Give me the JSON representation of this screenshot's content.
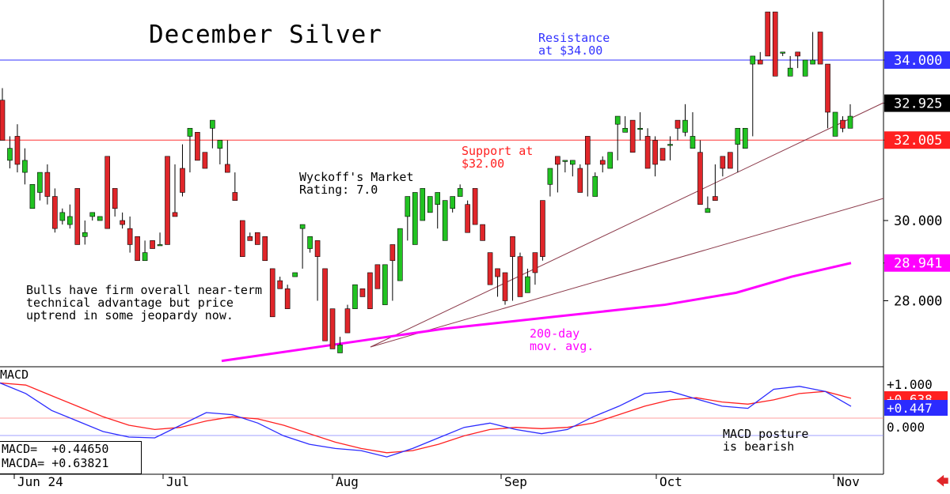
{
  "title": "December Silver",
  "annotations": {
    "resistance": "Resistance\nat $34.00",
    "support": "Support at\n$32.00",
    "rating": "Wyckoff's Market\nRating: 7.0",
    "bulls": "Bulls have firm overall near-term\ntechnical advantage but price\nuptrend in some jeopardy now.",
    "ma200": "200-day\nmov. avg.",
    "macd_posture": "MACD posture\nis bearish",
    "macd_label": "MACD"
  },
  "macd_box": {
    "macd": "MACD=  +0.44650",
    "macda": "MACDA= +0.63821"
  },
  "colors": {
    "up": "#22c322",
    "down": "#e0262a",
    "ma": "#ff00ff",
    "resistance": "#3333ff",
    "support": "#ff3333",
    "trend": "#8b3a4a",
    "macd": "#2b2bff",
    "macda": "#ff2020"
  },
  "chart_data": [
    {
      "type": "candlestick",
      "title": "December Silver",
      "x": [
        "Jun 24",
        "Jul",
        "Aug",
        "Sep",
        "Oct",
        "Nov"
      ],
      "y_ticks": [
        "34.000",
        "32.925",
        "32.005",
        "30.000",
        "28.941",
        "28.000"
      ],
      "ylim": [
        26.6,
        35.2
      ],
      "levels": {
        "resistance": 34.0,
        "support": 32.005,
        "last": 32.925,
        "ma200_last": 28.941
      },
      "candles": [
        [
          33.0,
          33.3,
          32.6,
          32.0
        ],
        [
          31.5,
          32.1,
          31.3,
          31.8
        ],
        [
          32.1,
          32.4,
          31.2,
          31.4
        ],
        [
          31.2,
          31.8,
          30.9,
          31.5
        ],
        [
          30.3,
          30.8,
          30.3,
          30.9
        ],
        [
          30.7,
          31.1,
          30.5,
          31.2
        ],
        [
          31.2,
          31.4,
          30.4,
          30.6
        ],
        [
          30.6,
          30.8,
          29.7,
          29.8
        ],
        [
          30.0,
          30.3,
          29.9,
          30.2
        ],
        [
          29.9,
          30.4,
          29.8,
          30.1
        ],
        [
          30.8,
          30.4,
          29.6,
          29.4
        ],
        [
          29.6,
          30.0,
          29.4,
          29.7
        ],
        [
          30.1,
          30.0,
          30.0,
          30.2
        ],
        [
          30.0,
          30.1,
          30.0,
          30.1
        ],
        [
          31.6,
          31.3,
          30.0,
          29.8
        ],
        [
          30.8,
          30.1,
          30.2,
          30.3
        ],
        [
          30.0,
          30.2,
          29.8,
          29.9
        ],
        [
          29.8,
          30.1,
          29.2,
          29.4
        ],
        [
          29.6,
          29.3,
          29.2,
          29.0
        ],
        [
          29.0,
          29.5,
          29.3,
          29.2
        ],
        [
          29.5,
          29.4,
          29.3,
          29.3
        ],
        [
          29.4,
          29.5,
          29.7,
          29.4
        ],
        [
          31.6,
          29.8,
          29.5,
          29.4
        ],
        [
          30.2,
          31.4,
          30.6,
          30.1
        ],
        [
          31.3,
          31.9,
          30.6,
          30.7
        ],
        [
          32.1,
          31.2,
          31.6,
          32.3
        ],
        [
          32.2,
          31.9,
          31.7,
          31.5
        ],
        [
          31.7,
          31.4,
          31.3,
          31.3
        ],
        [
          32.3,
          32.1,
          31.8,
          32.5
        ],
        [
          31.8,
          31.6,
          31.4,
          32.0
        ],
        [
          31.4,
          32.0,
          31.5,
          31.2
        ],
        [
          30.7,
          31.2,
          30.7,
          30.5
        ],
        [
          30.0,
          30.0,
          29.5,
          29.1
        ],
        [
          29.6,
          29.7,
          29.6,
          29.5
        ],
        [
          29.7,
          29.6,
          29.5,
          29.4
        ],
        [
          29.6,
          29.6,
          29.4,
          29.0
        ],
        [
          28.8,
          28.3,
          28.5,
          27.6
        ],
        [
          28.5,
          28.3,
          28.6,
          28.3
        ],
        [
          28.3,
          28.4,
          28.2,
          27.8
        ],
        [
          28.6,
          28.6,
          28.6,
          28.7
        ],
        [
          29.8,
          28.8,
          29.4,
          29.9
        ],
        [
          29.3,
          29.4,
          29.2,
          29.6
        ],
        [
          29.5,
          29.1,
          28.0,
          29.1
        ],
        [
          28.8,
          27.8,
          27.7,
          27.0
        ],
        [
          27.8,
          27.6,
          27.0,
          26.8
        ],
        [
          26.7,
          27.0,
          27.1,
          26.9
        ],
        [
          27.8,
          27.9,
          27.9,
          27.2
        ],
        [
          27.8,
          28.0,
          28.0,
          28.4
        ],
        [
          28.3,
          28.2,
          28.1,
          28.1
        ],
        [
          28.7,
          28.1,
          28.4,
          27.8
        ],
        [
          28.9,
          28.4,
          28.7,
          28.3
        ],
        [
          27.9,
          28.3,
          28.5,
          28.9
        ],
        [
          29.4,
          28.0,
          28.5,
          29.0
        ],
        [
          28.5,
          28.8,
          29.6,
          29.8
        ],
        [
          30.1,
          29.5,
          30.0,
          30.6
        ],
        [
          29.4,
          29.5,
          30.2,
          30.7
        ],
        [
          30.0,
          30.2,
          30.3,
          30.8
        ],
        [
          30.2,
          30.2,
          30.4,
          30.6
        ],
        [
          30.4,
          30.3,
          29.8,
          30.7
        ],
        [
          29.5,
          29.8,
          30.3,
          30.5
        ],
        [
          30.3,
          30.2,
          30.4,
          30.6
        ],
        [
          30.6,
          30.7,
          30.9,
          30.8
        ],
        [
          30.4,
          30.5,
          29.8,
          29.7
        ],
        [
          30.8,
          30.7,
          29.9,
          29.9
        ],
        [
          29.9,
          29.7,
          29.6,
          29.5
        ],
        [
          29.2,
          28.9,
          29.1,
          28.4
        ],
        [
          28.8,
          28.1,
          28.5,
          28.6
        ],
        [
          28.7,
          27.9,
          28.6,
          28.0
        ],
        [
          29.6,
          28.0,
          29.0,
          29.1
        ],
        [
          29.1,
          29.0,
          29.2,
          28.1
        ],
        [
          28.2,
          28.5,
          28.8,
          28.6
        ],
        [
          29.2,
          28.4,
          28.5,
          28.7
        ],
        [
          30.5,
          29.3,
          29.0,
          29.1
        ],
        [
          30.9,
          30.6,
          30.9,
          31.3
        ],
        [
          31.6,
          30.7,
          31.2,
          31.4
        ],
        [
          31.5,
          31.2,
          31.3,
          31.5
        ],
        [
          31.4,
          31.1,
          31.3,
          31.5
        ],
        [
          31.3,
          31.0,
          31.4,
          30.7
        ],
        [
          32.1,
          30.7,
          30.6,
          31.4
        ],
        [
          30.6,
          31.2,
          30.8,
          31.1
        ],
        [
          31.5,
          31.6,
          31.2,
          31.4
        ],
        [
          31.3,
          31.5,
          31.6,
          31.7
        ],
        [
          32.4,
          31.5,
          32.3,
          32.6
        ],
        [
          32.2,
          32.6,
          32.2,
          32.3
        ],
        [
          32.5,
          32.4,
          32.1,
          31.7
        ],
        [
          32.3,
          32.7,
          32.0,
          32.3
        ],
        [
          32.1,
          32.3,
          31.4,
          31.3
        ],
        [
          32.0,
          32.1,
          31.1,
          31.4
        ],
        [
          31.8,
          31.5,
          31.7,
          31.5
        ],
        [
          31.9,
          32.1,
          31.5,
          31.9
        ],
        [
          32.5,
          32.0,
          32.2,
          32.3
        ],
        [
          32.2,
          32.1,
          32.9,
          32.5
        ],
        [
          31.8,
          32.7,
          31.9,
          32.1
        ],
        [
          31.7,
          32.0,
          31.5,
          30.4
        ],
        [
          30.2,
          30.5,
          30.6,
          30.3
        ],
        [
          30.6,
          30.8,
          31.4,
          30.5
        ],
        [
          31.6,
          31.1,
          31.6,
          31.3
        ],
        [
          31.7,
          31.4,
          31.7,
          31.3
        ],
        [
          31.9,
          31.4,
          31.2,
          32.3
        ],
        [
          31.8,
          31.9,
          32.1,
          32.3
        ],
        [
          33.9,
          32.1,
          33.9,
          34.1
        ],
        [
          34.0,
          34.2,
          34.0,
          33.9
        ],
        [
          35.2,
          34.3,
          35.2,
          34.1
        ],
        [
          35.2,
          35.2,
          34.0,
          33.6
        ],
        [
          34.2,
          34.1,
          34.1,
          34.2
        ],
        [
          33.6,
          34.1,
          33.9,
          33.8
        ],
        [
          34.2,
          33.8,
          33.9,
          34.1
        ],
        [
          33.6,
          34.0,
          33.8,
          34.0
        ],
        [
          33.9,
          34.1,
          34.7,
          34.0
        ],
        [
          34.7,
          34.7,
          33.9,
          33.9
        ],
        [
          33.9,
          33.9,
          32.3,
          32.7
        ],
        [
          32.1,
          32.7,
          32.4,
          32.7
        ],
        [
          32.5,
          32.2,
          32.6,
          32.3
        ],
        [
          32.3,
          32.5,
          32.9,
          32.6
        ]
      ],
      "ma200": [
        26.5,
        26.9,
        27.3,
        27.6,
        27.9,
        28.2,
        28.6,
        28.941
      ],
      "trendlines": "rising support lines",
      "x_axis_label": "",
      "y_axis_label": ""
    },
    {
      "type": "line",
      "title": "MACD",
      "y_ticks": [
        "+1.000",
        "+0.638",
        "+0.447",
        "0.000"
      ],
      "ylim": [
        -0.9,
        1.3
      ],
      "series": [
        {
          "name": "MACD",
          "values": [
            1.0,
            0.75,
            0.35,
            0.1,
            -0.15,
            -0.28,
            -0.3,
            0.0,
            0.3,
            0.25,
            0.05,
            -0.25,
            -0.45,
            -0.55,
            -0.6,
            -0.75,
            -0.55,
            -0.3,
            -0.05,
            0.05,
            -0.1,
            -0.2,
            -0.1,
            0.2,
            0.45,
            0.75,
            0.8,
            0.62,
            0.45,
            0.4,
            0.85,
            0.92,
            0.8,
            0.447
          ]
        },
        {
          "name": "MACDA",
          "values": [
            1.0,
            0.95,
            0.7,
            0.45,
            0.2,
            0.0,
            -0.1,
            -0.05,
            0.1,
            0.2,
            0.15,
            0.0,
            -0.2,
            -0.4,
            -0.55,
            -0.65,
            -0.6,
            -0.45,
            -0.25,
            -0.1,
            -0.05,
            -0.08,
            -0.05,
            0.05,
            0.25,
            0.45,
            0.6,
            0.65,
            0.55,
            0.5,
            0.6,
            0.75,
            0.8,
            0.638
          ]
        }
      ]
    }
  ]
}
